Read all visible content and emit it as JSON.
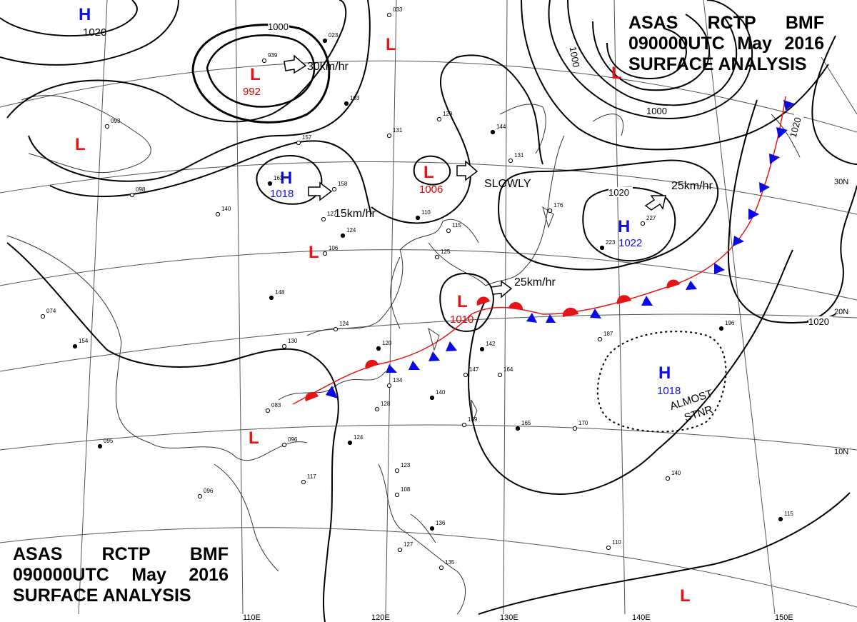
{
  "header": {
    "agency": "ASAS",
    "station": "RCTP",
    "code": "BMF",
    "time": "090000UTC",
    "month": "May",
    "year": "2016",
    "product": "SURFACE ANALYSIS"
  },
  "colors": {
    "high": "#1010dd",
    "low_letter": "#ee1111",
    "low_value": "#dd0000",
    "cold_front": "#0a0ae6",
    "warm_front": "#e61414",
    "isobar": "#000000",
    "grid": "#555555",
    "coast": "#333333"
  },
  "pressure_centers": [
    {
      "type": "H",
      "value": "1020",
      "name": "high-northwest"
    },
    {
      "type": "L",
      "value": "992",
      "name": "low-north"
    },
    {
      "type": "L",
      "value": "",
      "name": "low-north-sea"
    },
    {
      "type": "L",
      "value": "",
      "name": "low-west"
    },
    {
      "type": "H",
      "value": "1018",
      "name": "high-mongolia"
    },
    {
      "type": "L",
      "value": "1006",
      "name": "low-korea-north"
    },
    {
      "type": "L",
      "value": "",
      "name": "low-china"
    },
    {
      "type": "L",
      "value": "1010",
      "name": "low-east-china-sea"
    },
    {
      "type": "L",
      "value": "",
      "name": "low-indochina"
    },
    {
      "type": "L",
      "value": "",
      "name": "low-northeast"
    },
    {
      "type": "H",
      "value": "1022",
      "name": "high-pacific"
    },
    {
      "type": "H",
      "value": "1018",
      "name": "high-western-pacific"
    },
    {
      "type": "L",
      "value": "",
      "name": "low-south-pacific"
    }
  ],
  "motion_labels": [
    "30km/hr",
    "15km/hr",
    "SLOWLY",
    "25km/hr",
    "25km/hr"
  ],
  "isobar_labels": [
    "1000",
    "1000",
    "1000",
    "1020",
    "1020",
    "1020"
  ],
  "stationary_label": [
    "ALMOST",
    "STNR"
  ],
  "lat_labels": [
    "30N",
    "20N",
    "10N"
  ],
  "lon_labels": [
    "110E",
    "120E",
    "130E",
    "140E",
    "150E"
  ],
  "station_reports": [
    "023",
    "939",
    "093",
    "103",
    "129",
    "131",
    "144",
    "131",
    "157",
    "163",
    "158",
    "127",
    "124",
    "106",
    "140",
    "148",
    "124",
    "130",
    "120",
    "134",
    "128",
    "140",
    "147",
    "164",
    "142",
    "083",
    "096",
    "095",
    "096",
    "117",
    "124",
    "123",
    "108",
    "136",
    "127",
    "135",
    "165",
    "170",
    "159",
    "223",
    "227",
    "187",
    "196",
    "140",
    "110",
    "115",
    "033",
    "176",
    "110",
    "115",
    "125",
    "154",
    "074",
    "098"
  ]
}
